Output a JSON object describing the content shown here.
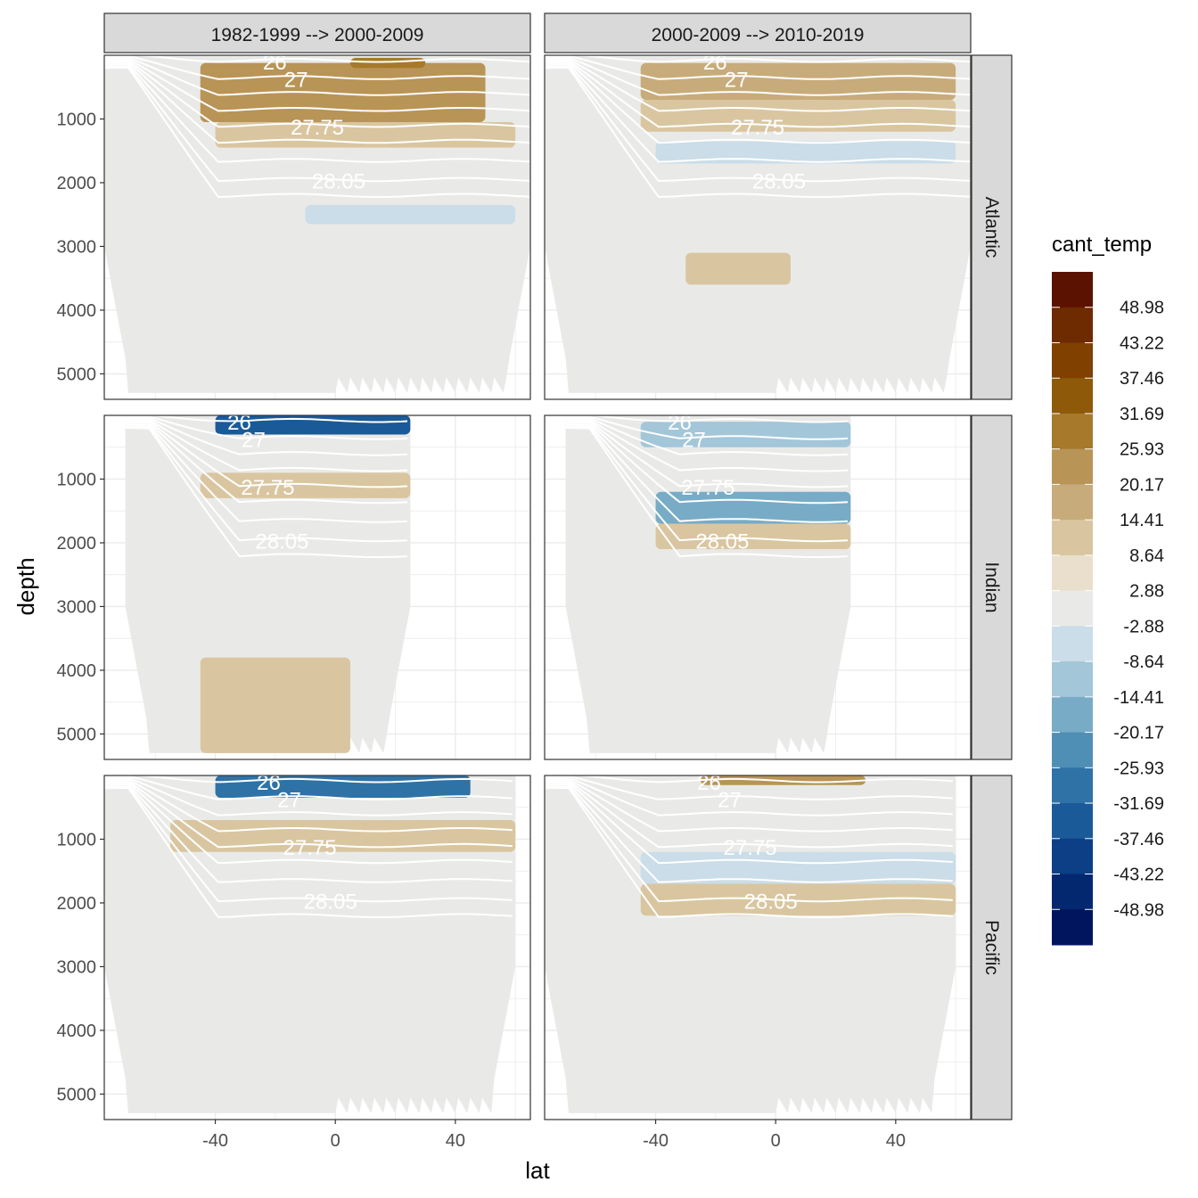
{
  "chart_data": {
    "type": "heatmap",
    "facet_cols": [
      "1982-1999 --> 2000-2009",
      "2000-2009 --> 2010-2019"
    ],
    "facet_rows": [
      "Atlantic",
      "Indian",
      "Pacific"
    ],
    "xlabel": "lat",
    "ylabel": "depth",
    "xlim": [
      -77,
      65
    ],
    "ylim": [
      5400,
      0
    ],
    "x_ticks": [
      -40,
      0,
      40
    ],
    "x_tick_labels": [
      "-40",
      "0",
      "40"
    ],
    "y_ticks": [
      1000,
      2000,
      3000,
      4000,
      5000
    ],
    "y_tick_labels": [
      "1000",
      "2000",
      "3000",
      "4000",
      "5000"
    ],
    "grid": true,
    "legend": {
      "title": "cant_temp",
      "position": "right",
      "labels": [
        "48.98",
        "43.22",
        "37.46",
        "31.69",
        "25.93",
        "20.17",
        "14.41",
        "8.64",
        "2.88",
        "-2.88",
        "-8.64",
        "-14.41",
        "-20.17",
        "-25.93",
        "-31.69",
        "-37.46",
        "-43.22",
        "-48.98"
      ],
      "colors": [
        "#5b1200",
        "#6e2a00",
        "#804000",
        "#8e5a0a",
        "#a67a2a",
        "#b89456",
        "#c8ab7a",
        "#d9c6a0",
        "#e9dfcc",
        "#e9eae8",
        "#cadde8",
        "#a3c6d9",
        "#78abc6",
        "#4f8fb6",
        "#2f72a6",
        "#1b5a98",
        "#0c3f85",
        "#042870",
        "#00155e"
      ]
    },
    "isopycnal_labels": [
      "26",
      "27",
      "27.75",
      "28.05"
    ],
    "panels": [
      {
        "row": "Atlantic",
        "col": 0,
        "lat_range": [
          -77,
          65
        ],
        "bands": [
          {
            "value": 20.17,
            "lat": [
              -45,
              50
            ],
            "depth": [
              120,
              1050
            ]
          },
          {
            "value": 8.64,
            "lat": [
              -40,
              60
            ],
            "depth": [
              1050,
              1450
            ]
          },
          {
            "value": 25.93,
            "lat": [
              5,
              30
            ],
            "depth": [
              40,
              200
            ]
          },
          {
            "value": -8.64,
            "lat": [
              -10,
              60
            ],
            "depth": [
              2350,
              2650
            ]
          }
        ]
      },
      {
        "row": "Atlantic",
        "col": 1,
        "lat_range": [
          -77,
          65
        ],
        "bands": [
          {
            "value": 14.41,
            "lat": [
              -45,
              60
            ],
            "depth": [
              120,
              700
            ]
          },
          {
            "value": 8.64,
            "lat": [
              -45,
              60
            ],
            "depth": [
              700,
              1200
            ]
          },
          {
            "value": -8.64,
            "lat": [
              -40,
              60
            ],
            "depth": [
              1350,
              1700
            ]
          },
          {
            "value": -2.88,
            "lat": [
              -30,
              60
            ],
            "depth": [
              2100,
              2400
            ]
          },
          {
            "value": 8.64,
            "lat": [
              -30,
              5
            ],
            "depth": [
              3100,
              3600
            ]
          }
        ]
      },
      {
        "row": "Indian",
        "col": 0,
        "lat_range": [
          -70,
          25
        ],
        "bands": [
          {
            "value": -37.46,
            "lat": [
              -40,
              25
            ],
            "depth": [
              0,
              300
            ]
          },
          {
            "value": 8.64,
            "lat": [
              -45,
              25
            ],
            "depth": [
              900,
              1300
            ]
          },
          {
            "value": 8.64,
            "lat": [
              -45,
              5
            ],
            "depth": [
              3800,
              5300
            ]
          }
        ]
      },
      {
        "row": "Indian",
        "col": 1,
        "lat_range": [
          -70,
          25
        ],
        "bands": [
          {
            "value": -14.41,
            "lat": [
              -45,
              25
            ],
            "depth": [
              100,
              500
            ]
          },
          {
            "value": -20.17,
            "lat": [
              -40,
              25
            ],
            "depth": [
              1200,
              1700
            ]
          },
          {
            "value": 8.64,
            "lat": [
              -40,
              25
            ],
            "depth": [
              1700,
              2100
            ]
          }
        ]
      },
      {
        "row": "Pacific",
        "col": 0,
        "lat_range": [
          -77,
          60
        ],
        "bands": [
          {
            "value": -31.69,
            "lat": [
              -40,
              45
            ],
            "depth": [
              0,
              350
            ]
          },
          {
            "value": 8.64,
            "lat": [
              -55,
              60
            ],
            "depth": [
              700,
              1200
            ]
          }
        ]
      },
      {
        "row": "Pacific",
        "col": 1,
        "lat_range": [
          -77,
          60
        ],
        "bands": [
          {
            "value": -8.64,
            "lat": [
              -45,
              60
            ],
            "depth": [
              1200,
              1700
            ]
          },
          {
            "value": 8.64,
            "lat": [
              -45,
              60
            ],
            "depth": [
              1700,
              2200
            ]
          },
          {
            "value": 20.17,
            "lat": [
              -25,
              30
            ],
            "depth": [
              0,
              150
            ]
          }
        ]
      }
    ]
  }
}
